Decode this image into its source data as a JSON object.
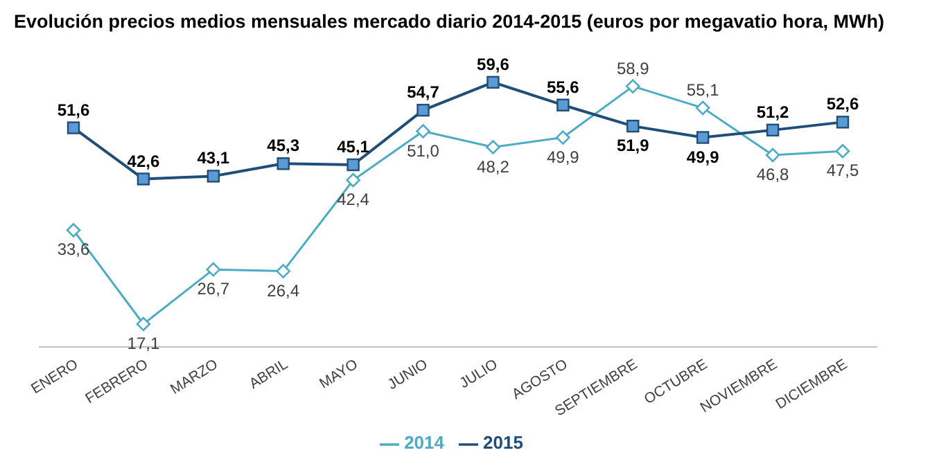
{
  "chart_data": {
    "type": "line",
    "title": "Evolución precios medios mensuales mercado diario 2014-2015 (euros por megavatio hora, MWh)",
    "categories": [
      "ENERO",
      "FEBRERO",
      "MARZO",
      "ABRIL",
      "MAYO",
      "JUNIO",
      "JULIO",
      "AGOSTO",
      "SEPTIEMBRE",
      "OCTUBRE",
      "NOVIEMBRE",
      "DICIEMBRE"
    ],
    "series": [
      {
        "name": "2014",
        "color": "#4bacc6",
        "marker": "diamond",
        "values": [
          33.6,
          17.1,
          26.7,
          26.4,
          42.4,
          51.0,
          48.2,
          49.9,
          58.9,
          55.1,
          46.8,
          47.5
        ],
        "value_labels": [
          "33,6",
          "17,1",
          "26,7",
          "26,4",
          "42,4",
          "51,0",
          "48,2",
          "49,9",
          "58,9",
          "55,1",
          "46,8",
          "47,5"
        ]
      },
      {
        "name": "2015",
        "color": "#1f4e79",
        "marker": "square",
        "values": [
          51.6,
          42.6,
          43.1,
          45.3,
          45.1,
          54.7,
          59.6,
          55.6,
          51.9,
          49.9,
          51.2,
          52.6
        ],
        "value_labels": [
          "51,6",
          "42,6",
          "43,1",
          "45,3",
          "45,1",
          "54,7",
          "59,6",
          "55,6",
          "51,9",
          "49,9",
          "51,2",
          "52,6"
        ]
      }
    ],
    "legend": "bottom",
    "line_style": "solid"
  }
}
